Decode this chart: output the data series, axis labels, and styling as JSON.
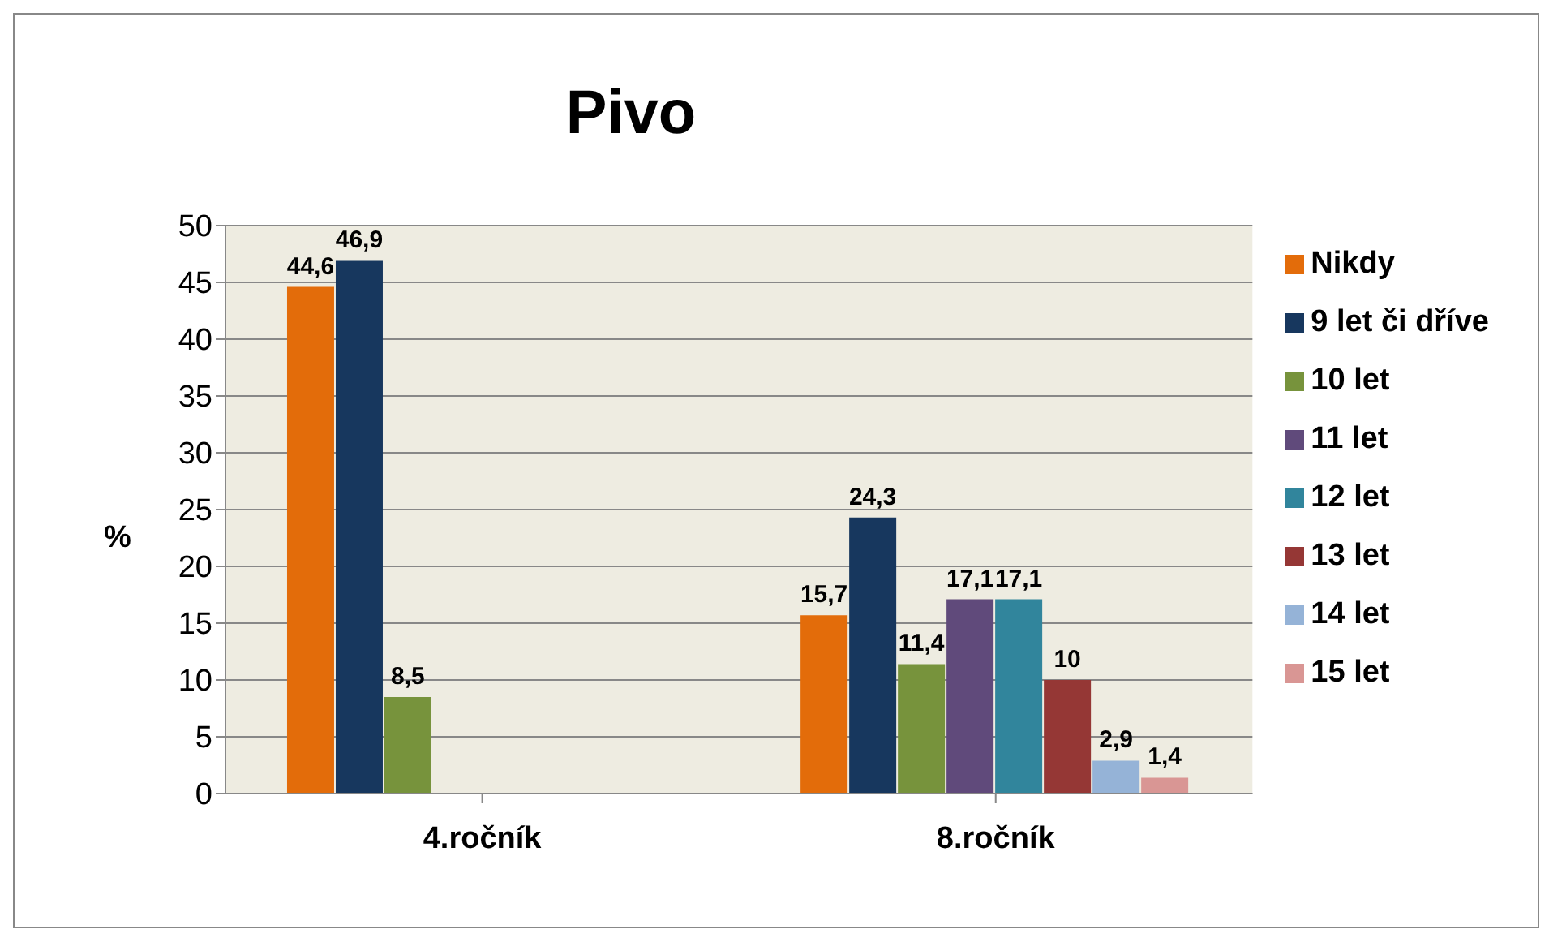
{
  "chart_data": {
    "type": "bar",
    "title": "Pivo",
    "ylabel": "%",
    "categories": [
      "4.ročník",
      "8.ročník"
    ],
    "series": [
      {
        "name": "Nikdy",
        "color": "#e36c0a",
        "values": [
          44.6,
          15.7
        ],
        "value_labels": [
          "44,6",
          "15,7"
        ]
      },
      {
        "name": "9 let či dříve",
        "color": "#17375e",
        "values": [
          46.9,
          24.3
        ],
        "value_labels": [
          "46,9",
          "24,3"
        ]
      },
      {
        "name": "10 let",
        "color": "#77933c",
        "values": [
          8.5,
          11.4
        ],
        "value_labels": [
          "8,5",
          "11,4"
        ]
      },
      {
        "name": "11 let",
        "color": "#604a7b",
        "values": [
          null,
          17.1
        ],
        "value_labels": [
          null,
          "17,1"
        ]
      },
      {
        "name": "12 let",
        "color": "#31859c",
        "values": [
          null,
          17.1
        ],
        "value_labels": [
          null,
          "17,1"
        ]
      },
      {
        "name": "13 let",
        "color": "#953735",
        "values": [
          null,
          10
        ],
        "value_labels": [
          null,
          "10"
        ]
      },
      {
        "name": "14 let",
        "color": "#95b3d7",
        "values": [
          null,
          2.9
        ],
        "value_labels": [
          null,
          "2,9"
        ]
      },
      {
        "name": "15 let",
        "color": "#d99694",
        "values": [
          null,
          1.4
        ],
        "value_labels": [
          null,
          "1,4"
        ]
      }
    ],
    "ylim": [
      0,
      50
    ],
    "yticks": [
      0,
      5,
      10,
      15,
      20,
      25,
      30,
      35,
      40,
      45,
      50
    ],
    "grid": "y",
    "legend": "right"
  }
}
